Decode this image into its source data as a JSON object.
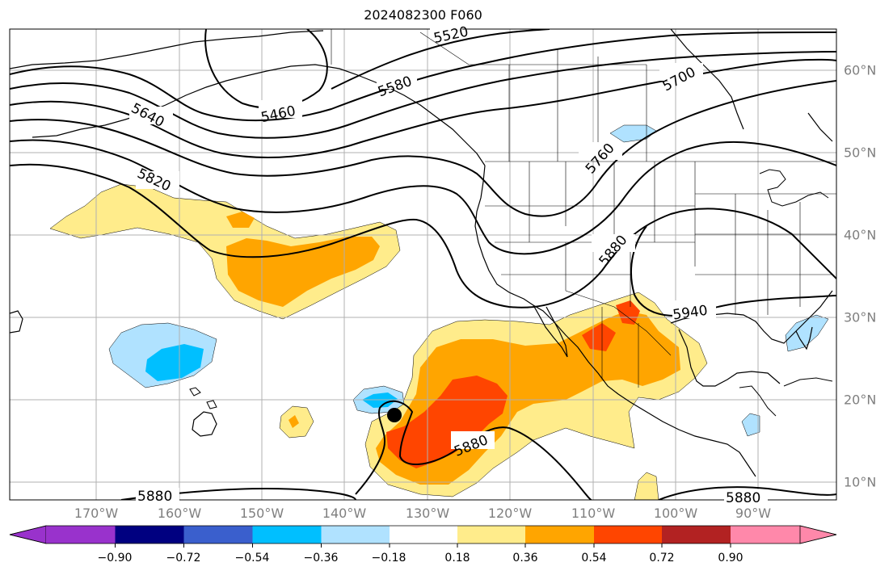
{
  "title": "2024082300 F060",
  "lon_labels": [
    "170°W",
    "160°W",
    "150°W",
    "140°W",
    "130°W",
    "120°W",
    "110°W",
    "100°W",
    "90°W"
  ],
  "lat_labels": [
    "60°N",
    "50°N",
    "40°N",
    "30°N",
    "20°N",
    "10°N"
  ],
  "contour_labels": [
    "5520",
    "5580",
    "5460",
    "5640",
    "5700",
    "5760",
    "5820",
    "5880",
    "5880",
    "5940",
    "5880",
    "5880"
  ],
  "colorbar": {
    "ticks": [
      "−0.90",
      "−0.72",
      "−0.54",
      "−0.36",
      "−0.18",
      "0.18",
      "0.36",
      "0.54",
      "0.72",
      "0.90"
    ],
    "colors": [
      "#9932cc",
      "#000080",
      "#3a5fcd",
      "#00bfff",
      "#b0e2ff",
      "#ffffff",
      "#ffec8b",
      "#ffa500",
      "#ff4500",
      "#b22222",
      "#ff88aa"
    ]
  },
  "marker": "storm-center-dot"
}
